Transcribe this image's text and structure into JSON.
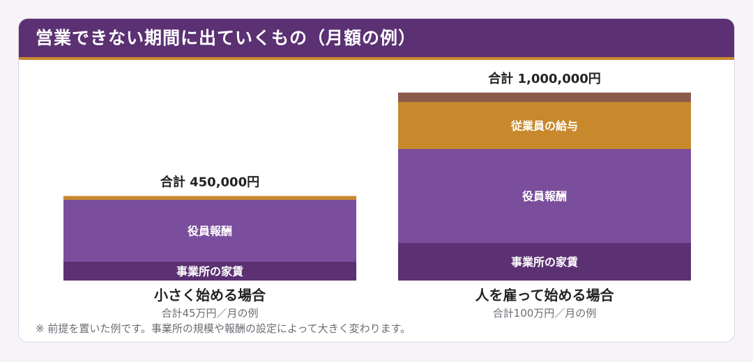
{
  "header": {
    "title": "営業できない期間に出ていくもの（月額の例）"
  },
  "colors": {
    "header_bg": "#5b3173",
    "header_border": "#c8882c",
    "rent": "#5b3173",
    "officer": "#7a4e9c",
    "employee": "#c8882c",
    "other": "#8a5a4a"
  },
  "chart_data": {
    "type": "bar",
    "stacked": true,
    "unit": "円",
    "categories": [
      "小さく始める場合",
      "人を雇って始める場合"
    ],
    "category_subtitles": [
      "合計45万円／月の例",
      "合計100万円／月の例"
    ],
    "totals": [
      450000,
      1000000
    ],
    "total_labels": [
      "合計 450,000円",
      "合計 1,000,000円"
    ],
    "series": [
      {
        "name": "事業所の家賃",
        "values": [
          100000,
          200000
        ],
        "color": "#5b3173"
      },
      {
        "name": "役員報酬",
        "values": [
          330000,
          500000
        ],
        "color": "#7a4e9c"
      },
      {
        "name": "従業員の給与",
        "values": [
          20000,
          250000
        ],
        "color": "#c8882c"
      },
      {
        "name": "",
        "values": [
          0,
          50000
        ],
        "color": "#8a5a4a"
      }
    ],
    "ylim": [
      0,
      1000000
    ],
    "legend": "none",
    "grid": false
  },
  "note": "※ 前提を置いた例です。事業所の規模や報酬の設定によって大きく変わります。"
}
